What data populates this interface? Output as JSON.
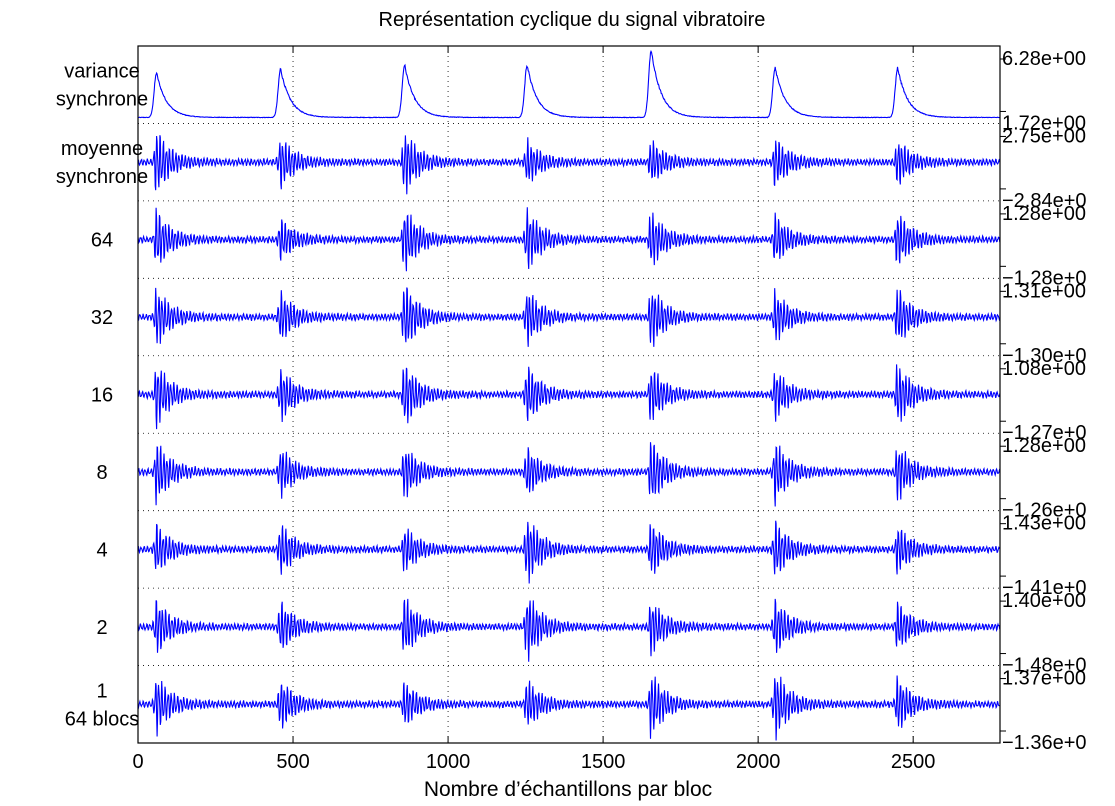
{
  "chart_data": {
    "type": "line",
    "title": "Représentation cyclique du signal vibratoire",
    "xlabel": "Nombre d’échantillons par bloc",
    "ylabel": "",
    "xlim": [
      0,
      2780
    ],
    "x_ticks": [
      0,
      500,
      1000,
      1500,
      2000,
      2500
    ],
    "x_tick_labels": [
      "0",
      "500",
      "1000",
      "1500",
      "2000",
      "2500"
    ],
    "grid": true,
    "line_color": "#0000ff",
    "burst_centers": [
      60,
      460,
      860,
      1255,
      1655,
      2055,
      2450
    ],
    "series": [
      {
        "label_lines": [
          "variance",
          "synchrone"
        ],
        "kind": "envelope",
        "max_label": "6.28e+00",
        "min_label": "1.72e+00",
        "peak_heights": [
          0.66,
          0.72,
          0.78,
          0.78,
          1.0,
          0.74,
          0.74
        ]
      },
      {
        "label_lines": [
          "moyenne",
          "synchrone"
        ],
        "kind": "oscillation",
        "max_label": "2.75e+00",
        "min_label": "−2.84e+0",
        "burst_amps": [
          0.95,
          0.72,
          0.92,
          0.62,
          0.62,
          0.72,
          0.66
        ]
      },
      {
        "label_lines": [
          "64"
        ],
        "kind": "oscillation",
        "max_label": "1.28e+00",
        "min_label": "−1.28e+0",
        "burst_amps": [
          0.85,
          0.6,
          0.95,
          0.9,
          0.82,
          0.7,
          0.8
        ]
      },
      {
        "label_lines": [
          "32"
        ],
        "kind": "oscillation",
        "max_label": "1.31e+00",
        "min_label": "−1.30e+0",
        "burst_amps": [
          0.85,
          0.72,
          1.0,
          0.82,
          0.88,
          0.75,
          0.82
        ]
      },
      {
        "label_lines": [
          "16"
        ],
        "kind": "oscillation",
        "max_label": "1.08e+00",
        "min_label": "−1.27e+0",
        "burst_amps": [
          0.92,
          0.76,
          0.95,
          0.85,
          0.82,
          0.7,
          0.9
        ]
      },
      {
        "label_lines": [
          "8"
        ],
        "kind": "oscillation",
        "max_label": "1.28e+00",
        "min_label": "−1.26e+0",
        "burst_amps": [
          0.9,
          0.7,
          0.75,
          0.72,
          0.95,
          0.9,
          0.82
        ]
      },
      {
        "label_lines": [
          "4"
        ],
        "kind": "oscillation",
        "max_label": "1.43e+00",
        "min_label": "−1.41e+0",
        "burst_amps": [
          0.72,
          0.75,
          0.65,
          1.0,
          0.78,
          0.85,
          0.68
        ]
      },
      {
        "label_lines": [
          "2"
        ],
        "kind": "oscillation",
        "max_label": "1.40e+00",
        "min_label": "−1.48e+0",
        "burst_amps": [
          0.8,
          0.75,
          0.85,
          1.0,
          0.78,
          0.8,
          0.7
        ]
      },
      {
        "label_lines": [
          "1",
          "64 blocs"
        ],
        "kind": "oscillation",
        "max_label": "1.37e+00",
        "min_label": "−1.36e+0",
        "burst_amps": [
          0.82,
          0.72,
          0.65,
          0.7,
          0.92,
          1.0,
          0.78
        ]
      }
    ]
  }
}
